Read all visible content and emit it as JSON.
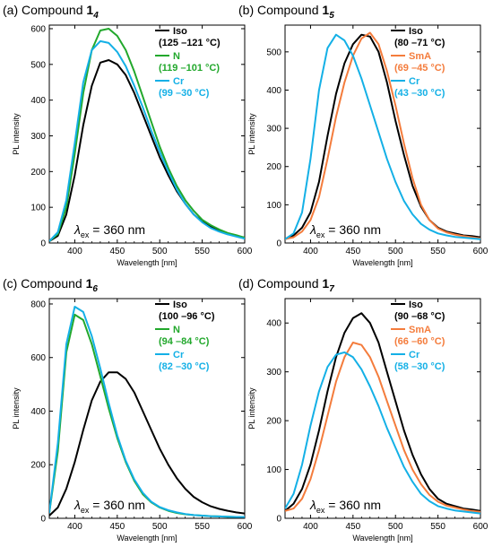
{
  "chart_data": [
    {
      "type": "line",
      "panel_label": "(a) Compound ",
      "compound_number": "1",
      "compound_subscript": "4",
      "xlabel": "Wavelength [nm]",
      "ylabel": "PL intensity",
      "xlim": [
        370,
        600
      ],
      "ylim": [
        0,
        610
      ],
      "xticks": [
        400,
        450,
        500,
        550,
        600
      ],
      "yticks": [
        0,
        100,
        200,
        300,
        400,
        500,
        600
      ],
      "annotation": {
        "lambda": "λ",
        "sub": "ex",
        "rest": " = 360 nm"
      },
      "legend_position": "top-right",
      "legend": [
        {
          "name": "Iso",
          "range": "(125 –121 °C)",
          "color": "#000000"
        },
        {
          "name": "N",
          "range": "(119 –101 °C)",
          "color": "#22a82c"
        },
        {
          "name": "Cr",
          "range": "(99 –30 °C)",
          "color": "#14b0e6"
        }
      ],
      "series": [
        {
          "name": "Iso",
          "color": "#000000",
          "x": [
            370,
            380,
            390,
            400,
            410,
            420,
            430,
            440,
            450,
            460,
            470,
            480,
            490,
            500,
            510,
            520,
            530,
            540,
            550,
            560,
            570,
            580,
            590,
            600
          ],
          "values": [
            5,
            20,
            80,
            190,
            330,
            440,
            505,
            512,
            500,
            470,
            420,
            360,
            300,
            240,
            190,
            145,
            110,
            80,
            60,
            45,
            35,
            25,
            20,
            15
          ]
        },
        {
          "name": "N",
          "color": "#22a82c",
          "x": [
            370,
            380,
            390,
            400,
            410,
            420,
            430,
            440,
            450,
            460,
            470,
            480,
            490,
            500,
            510,
            520,
            530,
            540,
            550,
            560,
            570,
            580,
            590,
            600
          ],
          "values": [
            5,
            25,
            100,
            250,
            420,
            540,
            595,
            600,
            580,
            540,
            480,
            410,
            340,
            270,
            210,
            160,
            120,
            90,
            65,
            50,
            38,
            28,
            22,
            15
          ]
        },
        {
          "name": "Cr",
          "color": "#14b0e6",
          "x": [
            370,
            380,
            390,
            400,
            410,
            420,
            430,
            440,
            450,
            460,
            470,
            480,
            490,
            500,
            510,
            520,
            530,
            540,
            550,
            560,
            570,
            580,
            590,
            600
          ],
          "values": [
            5,
            30,
            120,
            280,
            450,
            540,
            565,
            560,
            535,
            495,
            440,
            380,
            315,
            255,
            200,
            150,
            110,
            80,
            58,
            42,
            32,
            24,
            18,
            12
          ]
        }
      ]
    },
    {
      "type": "line",
      "panel_label": "(b) Compound ",
      "compound_number": "1",
      "compound_subscript": "5",
      "xlabel": "Wavelength [nm]",
      "ylabel": "PL intensity",
      "xlim": [
        370,
        600
      ],
      "ylim": [
        0,
        570
      ],
      "xticks": [
        400,
        450,
        500,
        550,
        600
      ],
      "yticks": [
        0,
        100,
        200,
        300,
        400,
        500
      ],
      "annotation": {
        "lambda": "λ",
        "sub": "ex",
        "rest": " = 360 nm"
      },
      "legend_position": "top-right",
      "legend": [
        {
          "name": "Iso",
          "range": "(80 –71 °C)",
          "color": "#000000"
        },
        {
          "name": "SmA",
          "range": "(69 –45 °C)",
          "color": "#f47c3c"
        },
        {
          "name": "Cr",
          "range": "(43 –30 °C)",
          "color": "#14b0e6"
        }
      ],
      "series": [
        {
          "name": "Iso",
          "color": "#000000",
          "x": [
            370,
            380,
            390,
            400,
            410,
            420,
            430,
            440,
            450,
            460,
            470,
            480,
            490,
            500,
            510,
            520,
            530,
            540,
            550,
            560,
            570,
            580,
            590,
            600
          ],
          "values": [
            10,
            20,
            40,
            80,
            160,
            280,
            390,
            470,
            520,
            545,
            540,
            500,
            420,
            320,
            230,
            150,
            95,
            60,
            40,
            30,
            25,
            20,
            18,
            15
          ]
        },
        {
          "name": "SmA",
          "color": "#f47c3c",
          "x": [
            370,
            380,
            390,
            400,
            410,
            420,
            430,
            440,
            450,
            460,
            470,
            480,
            490,
            500,
            510,
            520,
            530,
            540,
            550,
            560,
            570,
            580,
            590,
            600
          ],
          "values": [
            10,
            15,
            30,
            60,
            120,
            220,
            330,
            420,
            490,
            535,
            550,
            520,
            450,
            360,
            260,
            170,
            100,
            60,
            38,
            28,
            22,
            18,
            15,
            12
          ]
        },
        {
          "name": "Cr",
          "color": "#14b0e6",
          "x": [
            370,
            380,
            390,
            400,
            410,
            420,
            430,
            440,
            450,
            460,
            470,
            480,
            490,
            500,
            510,
            520,
            530,
            540,
            550,
            560,
            570,
            580,
            590,
            600
          ],
          "values": [
            10,
            25,
            80,
            220,
            400,
            510,
            545,
            530,
            490,
            430,
            360,
            290,
            220,
            160,
            110,
            75,
            50,
            35,
            25,
            20,
            16,
            14,
            12,
            10
          ]
        }
      ]
    },
    {
      "type": "line",
      "panel_label": "(c) Compound ",
      "compound_number": "1",
      "compound_subscript": "6",
      "xlabel": "Wavelength [nm]",
      "ylabel": "PL intensity",
      "xlim": [
        370,
        600
      ],
      "ylim": [
        0,
        820
      ],
      "xticks": [
        400,
        450,
        500,
        550,
        600
      ],
      "yticks": [
        0,
        200,
        400,
        600,
        800
      ],
      "annotation": {
        "lambda": "λ",
        "sub": "ex",
        "rest": " = 360 nm"
      },
      "legend_position": "top-right",
      "legend": [
        {
          "name": "Iso",
          "range": "(100 –96 °C)",
          "color": "#000000"
        },
        {
          "name": "N",
          "range": "(94 –84 °C)",
          "color": "#22a82c"
        },
        {
          "name": "Cr",
          "range": "(82 –30 °C)",
          "color": "#14b0e6"
        }
      ],
      "series": [
        {
          "name": "Iso",
          "color": "#000000",
          "x": [
            370,
            380,
            390,
            400,
            410,
            420,
            430,
            440,
            450,
            460,
            470,
            480,
            490,
            500,
            510,
            520,
            530,
            540,
            550,
            560,
            570,
            580,
            590,
            600
          ],
          "values": [
            10,
            40,
            110,
            210,
            330,
            440,
            510,
            545,
            545,
            520,
            470,
            400,
            330,
            260,
            200,
            150,
            110,
            80,
            60,
            45,
            35,
            28,
            22,
            18
          ]
        },
        {
          "name": "N",
          "color": "#22a82c",
          "x": [
            370,
            380,
            390,
            400,
            410,
            420,
            430,
            440,
            450,
            460,
            470,
            480,
            490,
            500,
            510,
            520,
            530,
            540,
            550,
            560,
            570,
            580,
            590,
            600
          ],
          "values": [
            20,
            250,
            620,
            760,
            740,
            650,
            530,
            410,
            300,
            210,
            140,
            90,
            60,
            40,
            28,
            20,
            15,
            12,
            10,
            8,
            7,
            6,
            5,
            5
          ]
        },
        {
          "name": "Cr",
          "color": "#14b0e6",
          "x": [
            370,
            380,
            390,
            400,
            410,
            420,
            430,
            440,
            450,
            460,
            470,
            480,
            490,
            500,
            510,
            520,
            530,
            540,
            550,
            560,
            570,
            580,
            590,
            600
          ],
          "values": [
            20,
            280,
            650,
            790,
            770,
            680,
            560,
            430,
            310,
            215,
            145,
            95,
            62,
            42,
            30,
            22,
            16,
            12,
            10,
            8,
            7,
            6,
            5,
            5
          ]
        }
      ]
    },
    {
      "type": "line",
      "panel_label": "(d) Compound ",
      "compound_number": "1",
      "compound_subscript": "7",
      "xlabel": "Wavelength [nm]",
      "ylabel": "PL intensity",
      "xlim": [
        370,
        600
      ],
      "ylim": [
        0,
        450
      ],
      "xticks": [
        400,
        450,
        500,
        550,
        600
      ],
      "yticks": [
        0,
        100,
        200,
        300,
        400
      ],
      "annotation": {
        "lambda": "λ",
        "sub": "ex",
        "rest": " = 360 nm"
      },
      "legend_position": "top-right",
      "legend": [
        {
          "name": "Iso",
          "range": "(90 –68 °C)",
          "color": "#000000"
        },
        {
          "name": "SmA",
          "range": "(66 –60 °C)",
          "color": "#f47c3c"
        },
        {
          "name": "Cr",
          "range": "(58 –30 °C)",
          "color": "#14b0e6"
        }
      ],
      "series": [
        {
          "name": "Iso",
          "color": "#000000",
          "x": [
            370,
            380,
            390,
            400,
            410,
            420,
            430,
            440,
            450,
            460,
            470,
            480,
            490,
            500,
            510,
            520,
            530,
            540,
            550,
            560,
            570,
            580,
            590,
            600
          ],
          "values": [
            15,
            30,
            60,
            110,
            180,
            260,
            330,
            380,
            410,
            420,
            400,
            360,
            300,
            240,
            180,
            130,
            90,
            60,
            40,
            30,
            25,
            20,
            18,
            15
          ]
        },
        {
          "name": "SmA",
          "color": "#f47c3c",
          "x": [
            370,
            380,
            390,
            400,
            410,
            420,
            430,
            440,
            450,
            460,
            470,
            480,
            490,
            500,
            510,
            520,
            530,
            540,
            550,
            560,
            570,
            580,
            590,
            600
          ],
          "values": [
            15,
            20,
            40,
            80,
            140,
            210,
            280,
            330,
            360,
            355,
            330,
            290,
            240,
            190,
            140,
            100,
            70,
            48,
            34,
            26,
            22,
            18,
            15,
            13
          ]
        },
        {
          "name": "Cr",
          "color": "#14b0e6",
          "x": [
            370,
            380,
            390,
            400,
            410,
            420,
            430,
            440,
            450,
            460,
            470,
            480,
            490,
            500,
            510,
            520,
            530,
            540,
            550,
            560,
            570,
            580,
            590,
            600
          ],
          "values": [
            20,
            50,
            110,
            190,
            260,
            310,
            335,
            340,
            330,
            305,
            270,
            230,
            185,
            145,
            105,
            75,
            50,
            35,
            25,
            20,
            16,
            14,
            12,
            10
          ]
        }
      ]
    }
  ]
}
